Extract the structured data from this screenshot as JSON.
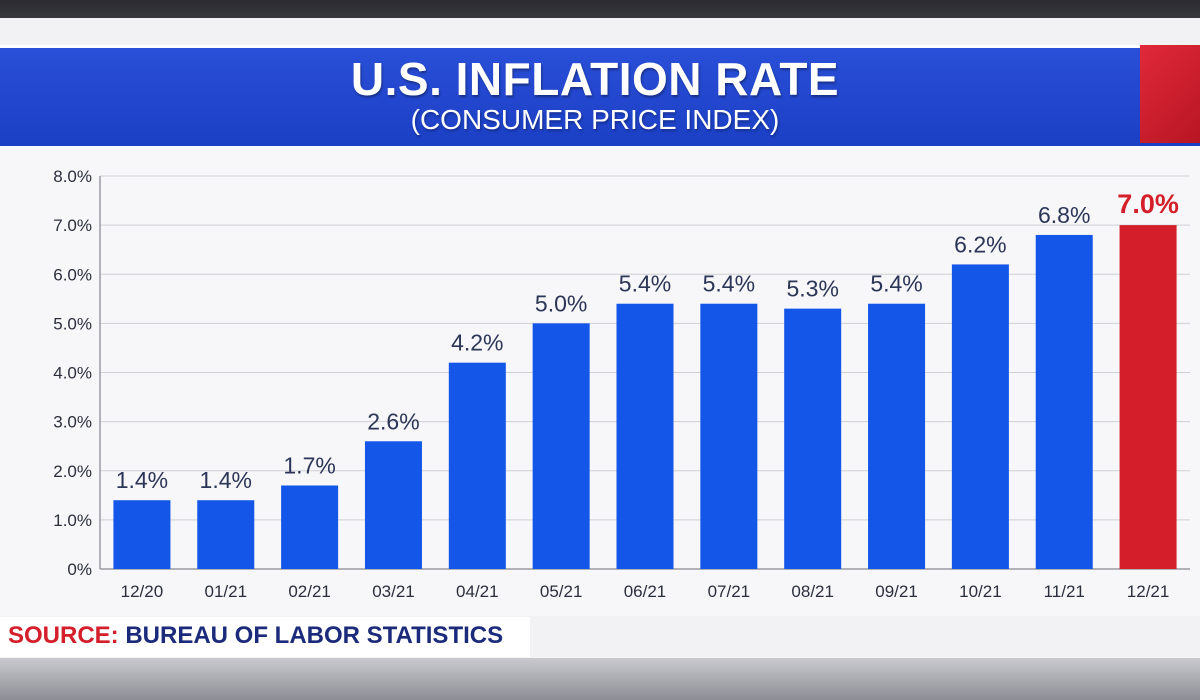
{
  "title": "U.S. INFLATION RATE",
  "subtitle": "(CONSUMER PRICE INDEX)",
  "source": {
    "label": "SOURCE:",
    "text": "BUREAU OF LABOR STATISTICS"
  },
  "colors": {
    "banner": "#1f45cc",
    "bar": "#1457e8",
    "highlight": "#d41f2a",
    "value_text": "#2b3556",
    "source_text": "#1b2a7a"
  },
  "chart_data": {
    "type": "bar",
    "categories": [
      "12/20",
      "01/21",
      "02/21",
      "03/21",
      "04/21",
      "05/21",
      "06/21",
      "07/21",
      "08/21",
      "09/21",
      "10/21",
      "11/21",
      "12/21"
    ],
    "values": [
      1.4,
      1.4,
      1.7,
      2.6,
      4.2,
      5.0,
      5.4,
      5.4,
      5.3,
      5.4,
      6.2,
      6.8,
      7.0
    ],
    "value_labels": [
      "1.4%",
      "1.4%",
      "1.7%",
      "2.6%",
      "4.2%",
      "5.0%",
      "5.4%",
      "5.4%",
      "5.3%",
      "5.4%",
      "6.2%",
      "6.8%",
      "7.0%"
    ],
    "highlight_index": 12,
    "ylim": [
      0,
      8
    ],
    "yticks": [
      "0%",
      "1.0%",
      "2.0%",
      "3.0%",
      "4.0%",
      "5.0%",
      "6.0%",
      "7.0%",
      "8.0%"
    ],
    "grid": true,
    "xlabel": "",
    "ylabel": ""
  }
}
